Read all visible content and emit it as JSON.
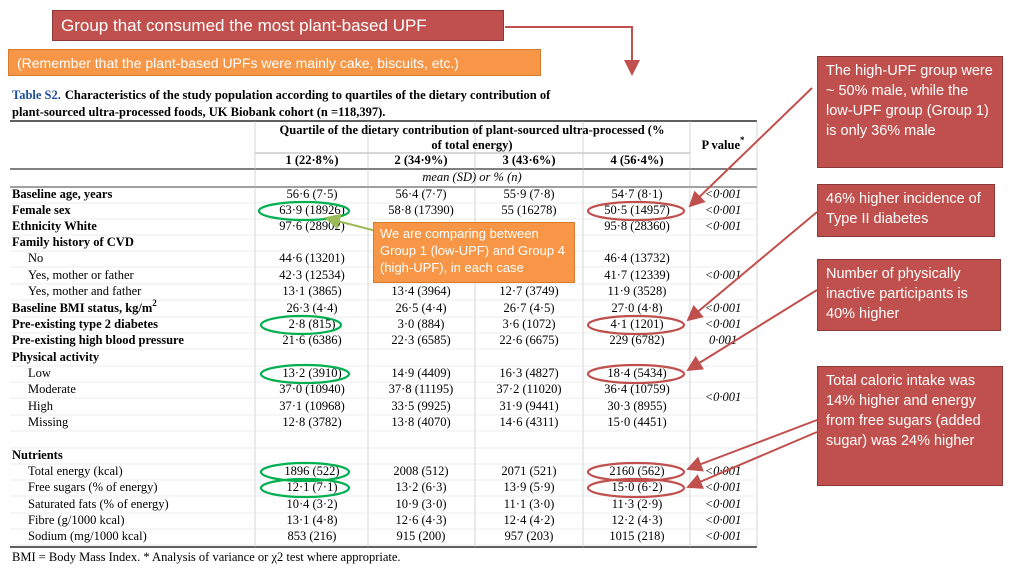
{
  "banner": "Group that consumed the most plant-based UPF",
  "note": "(Remember that the plant-based UPFs were mainly cake, biscuits, etc.)",
  "comparison_note": "We are comparing between Group 1 (low-UPF) and Group 4 (high-UPF), in each case",
  "annotations": [
    "The high-UPF group were ~ 50% male, while the low-UPF group (Group 1) is only 36% male",
    "46% higher incidence of Type II diabetes",
    "Number of physically inactive participants is 40% higher",
    "Total caloric intake was 14% higher and energy from free sugars (added sugar) was 24% higher"
  ],
  "table": {
    "label": "Table S2.",
    "caption_line1": "Characteristics of the study population according to quartiles of the dietary contribution of",
    "caption_line2": "plant-sourced ultra-processed foods, UK Biobank cohort (n =118,397).",
    "quartile_title_line1": "Quartile of the dietary contribution of plant-sourced ultra-processed (%",
    "quartile_title_line2": "of total energy)",
    "p_header": "P value",
    "p_header_mark": "*",
    "columns": [
      "1 (22·8%)",
      "2 (34·9%)",
      "3 (43·6%)",
      "4 (56·4%)"
    ],
    "subheader": "mean (SD) or % (n)",
    "rows": [
      {
        "label": "Baseline age, years",
        "bold": true,
        "cells": [
          "56·6 (7·5)",
          "56·4 (7·7)",
          "55·9 (7·8)",
          "54·7 (8·1)"
        ],
        "p": "<0·001"
      },
      {
        "label": "Female sex",
        "bold": true,
        "cells": [
          "63·9 (18926)",
          "58·8 (17390)",
          "55 (16278)",
          "50·5 (14957)"
        ],
        "p": "<0·001"
      },
      {
        "label": "Ethnicity White",
        "bold": true,
        "cells": [
          "97·6 (28902)",
          null,
          null,
          "95·8 (28360)"
        ],
        "p": "<0·001"
      },
      {
        "label": "Family history of CVD",
        "bold": true
      },
      {
        "label": "No",
        "bold": false,
        "cells": [
          "44·6 (13201)",
          null,
          null,
          "46·4 (13732)"
        ]
      },
      {
        "label": "Yes, mother or father",
        "bold": false,
        "cells": [
          "42·3 (12534)",
          null,
          null,
          "41·7 (12339)"
        ],
        "p": "<0·001"
      },
      {
        "label": "Yes, mother and father",
        "bold": false,
        "cells": [
          "13·1 (3865)",
          "13·4 (3964)",
          "12·7 (3749)",
          "11·9 (3528)"
        ]
      },
      {
        "label": "Baseline BMI status, kg/m",
        "label_sup": "2",
        "bold": true,
        "cells": [
          "26·3 (4·4)",
          "26·5 (4·4)",
          "26·7 (4·5)",
          "27·0 (4·8)"
        ],
        "p": "<0·001"
      },
      {
        "label": "Pre-existing type 2 diabetes",
        "bold": true,
        "cells": [
          "2·8 (815)",
          "3·0 (884)",
          "3·6 (1072)",
          "4·1 (1201)"
        ],
        "p": "<0·001"
      },
      {
        "label": "Pre-existing high blood pressure",
        "bold": true,
        "cells": [
          "21·6 (6386)",
          "22·3 (6585)",
          "22·6 (6675)",
          "229 (6782)"
        ],
        "p": "0·001"
      },
      {
        "label": "Physical activity",
        "bold": true
      },
      {
        "label": "Low",
        "bold": false,
        "cells": [
          "13·2 (3910)",
          "14·9 (4409)",
          "16·3 (4827)",
          "18·4 (5434)"
        ]
      },
      {
        "label": "Moderate",
        "bold": false,
        "cells": [
          "37·0 (10940)",
          "37·8 (11195)",
          "37·2 (11020)",
          "36·4 (10759)"
        ],
        "p": "<0·001"
      },
      {
        "label": "High",
        "bold": false,
        "cells": [
          "37·1 (10968)",
          "33·5 (9925)",
          "31·9 (9441)",
          "30·3 (8955)"
        ]
      },
      {
        "label": "Missing",
        "bold": false,
        "cells": [
          "12·8 (3782)",
          "13·8 (4070)",
          "14·6 (4311)",
          "15·0 (4451)"
        ]
      },
      {
        "label": "Nutrients",
        "bold": true
      },
      {
        "label": "Total energy (kcal)",
        "bold": false,
        "cells": [
          "1896 (522)",
          "2008 (512)",
          "2071 (521)",
          "2160 (562)"
        ],
        "p": "<0·001"
      },
      {
        "label": "Free sugars (% of energy)",
        "bold": false,
        "cells": [
          "12·1 (7·1)",
          "13·2 (6·3)",
          "13·9 (5·9)",
          "15·0 (6·2)"
        ],
        "p": "<0·001"
      },
      {
        "label": "Saturated fats (% of energy)",
        "bold": false,
        "cells": [
          "10·4 (3·2)",
          "10·9 (3·0)",
          "11·1 (3·0)",
          "11·3 (2·9)"
        ],
        "p": "<0·001"
      },
      {
        "label": "Fibre (g/1000 kcal)",
        "bold": false,
        "cells": [
          "13·1 (4·8)",
          "12·6 (4·3)",
          "12·4 (4·2)",
          "12·2 (4·3)"
        ],
        "p": "<0·001"
      },
      {
        "label": "Sodium (mg/1000 kcal)",
        "bold": false,
        "cells": [
          "853 (216)",
          "915 (200)",
          "957 (203)",
          "1015 (218)"
        ],
        "p": "<0·001"
      }
    ],
    "footnote": "BMI = Body Mass Index. * Analysis of variance or χ2 test where appropriate."
  }
}
